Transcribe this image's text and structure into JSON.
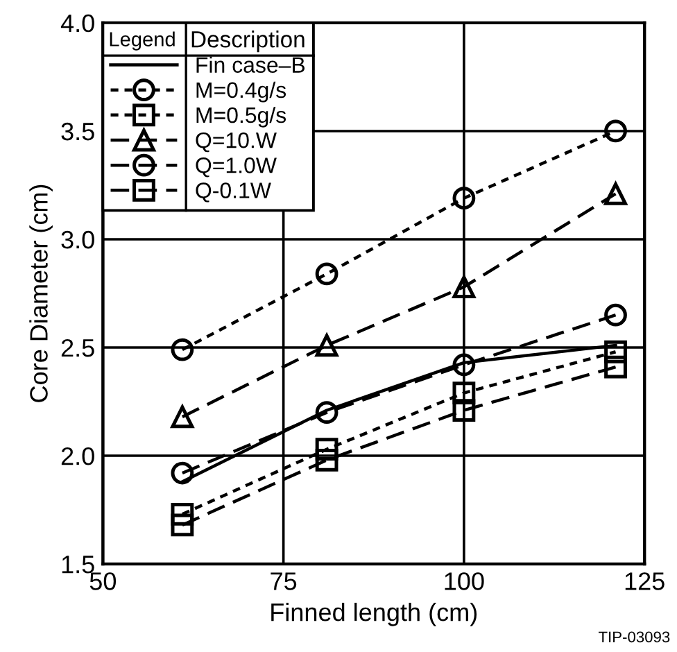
{
  "chart_data": {
    "type": "line",
    "xlabel": "Finned length (cm)",
    "ylabel": "Core Diameter (cm)",
    "legend_title": "Description",
    "x": [
      61,
      81,
      100,
      121
    ],
    "series": [
      {
        "name": "Fin case–B",
        "color": "#000000",
        "marker": "none",
        "line_style": "solid",
        "values": [
          1.88,
          2.21,
          2.43,
          2.51
        ]
      },
      {
        "name": "M=0.4g/s",
        "color": "#000000",
        "marker": "circle",
        "line_style": "dotted",
        "values": [
          2.49,
          2.84,
          3.19,
          3.5
        ]
      },
      {
        "name": "M=0.5g/s",
        "color": "#000000",
        "marker": "square",
        "line_style": "dotted",
        "values": [
          1.73,
          2.03,
          2.29,
          2.48
        ]
      },
      {
        "name": "Q=10.W",
        "color": "#000000",
        "marker": "triangle",
        "line_style": "dashed",
        "values": [
          2.18,
          2.51,
          2.78,
          3.21
        ]
      },
      {
        "name": "Q=1.0W",
        "color": "#000000",
        "marker": "circle",
        "line_style": "dashed",
        "values": [
          1.92,
          2.2,
          2.42,
          2.65
        ]
      },
      {
        "name": "Q-0.1W",
        "color": "#000000",
        "marker": "square",
        "line_style": "dashed",
        "values": [
          1.68,
          1.98,
          2.21,
          2.41
        ]
      }
    ],
    "xlim": [
      50,
      125
    ],
    "xticks": [
      50,
      75,
      100,
      125
    ],
    "ylim": [
      1.5,
      4.0
    ],
    "yticks": [
      {
        "value": 1.5,
        "label": "1.5"
      },
      {
        "value": 2.0,
        "label": "2.0"
      },
      {
        "value": 2.5,
        "label": "2.5"
      },
      {
        "value": 3.0,
        "label": "3.0"
      },
      {
        "value": 3.5,
        "label": "3.5"
      },
      {
        "value": 4.0,
        "label": "4.0"
      }
    ],
    "grid": true,
    "legend": "top left",
    "annotations": [
      "Legend",
      "TIP-03093"
    ]
  }
}
